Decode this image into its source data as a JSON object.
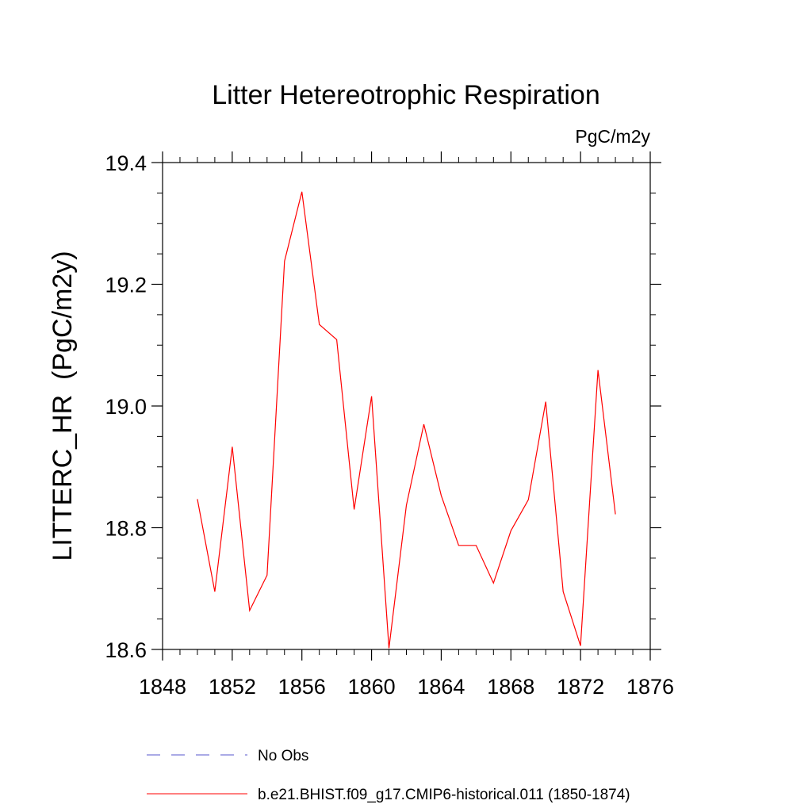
{
  "chart_data": {
    "type": "line",
    "title": "Litter Hetereotrophic Respiration",
    "units": "PgC/m2y",
    "ylabel": "LITTERC_HR  (PgC/m2y)",
    "xlabel": "",
    "xlim": [
      1848,
      1876
    ],
    "ylim": [
      18.6,
      19.4
    ],
    "xticks": [
      1848,
      1852,
      1856,
      1860,
      1864,
      1868,
      1872,
      1876
    ],
    "yticks": [
      "18.6",
      "18.8",
      "19.0",
      "19.2",
      "19.4"
    ],
    "grid": false,
    "legend_position": "bottom",
    "series": [
      {
        "name": "b.e21.BHIST.f09_g17.CMIP6-historical.011 (1850-1874)",
        "color": "#ff0000",
        "style": "solid",
        "x": [
          1850,
          1851,
          1852,
          1853,
          1854,
          1855,
          1856,
          1857,
          1858,
          1859,
          1860,
          1861,
          1862,
          1863,
          1864,
          1865,
          1866,
          1867,
          1868,
          1869,
          1870,
          1871,
          1872,
          1873,
          1874
        ],
        "y": [
          18.847,
          18.695,
          18.933,
          18.664,
          18.722,
          19.238,
          19.352,
          19.134,
          19.109,
          18.83,
          19.016,
          18.602,
          18.837,
          18.97,
          18.853,
          18.771,
          18.771,
          18.709,
          18.795,
          18.846,
          19.007,
          18.695,
          18.606,
          19.059,
          18.822
        ]
      }
    ],
    "legend": [
      {
        "label": "No Obs",
        "color": "#5555cc",
        "style": "dashed"
      },
      {
        "label": "b.e21.BHIST.f09_g17.CMIP6-historical.011 (1850-1874)",
        "color": "#ff0000",
        "style": "solid"
      }
    ]
  }
}
